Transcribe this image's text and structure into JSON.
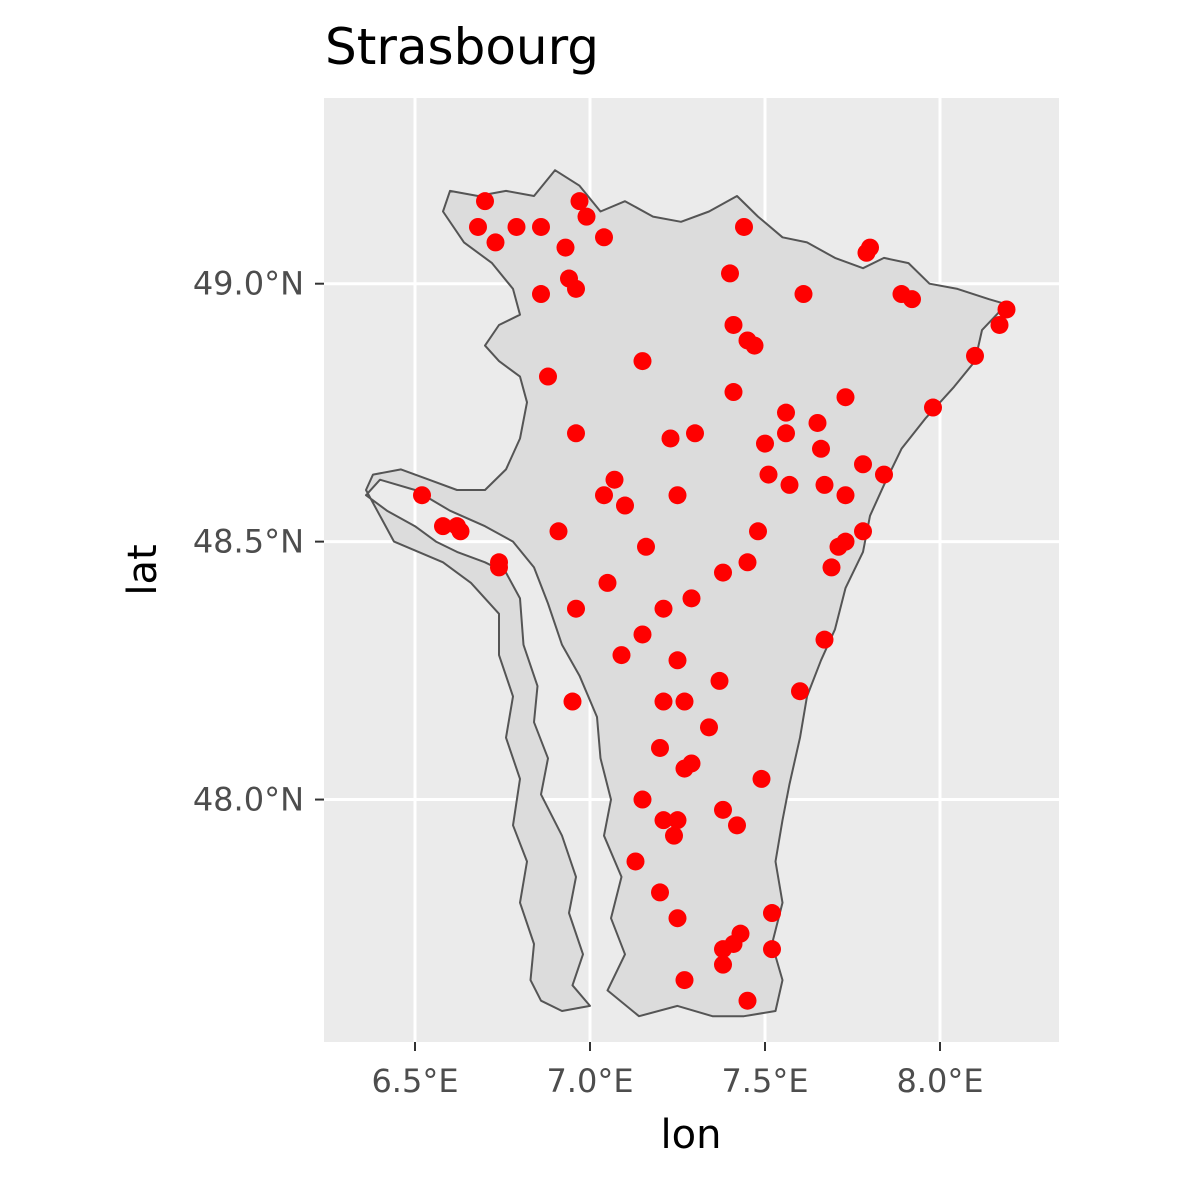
{
  "chart_data": {
    "type": "scatter",
    "title": "Strasbourg",
    "xlabel": "lon",
    "ylabel": "lat",
    "xlim": [
      6.24,
      8.34
    ],
    "ylim": [
      47.53,
      49.36
    ],
    "x_ticks": [
      {
        "value": 6.5,
        "label": "6.5°E"
      },
      {
        "value": 7.0,
        "label": "7.0°E"
      },
      {
        "value": 7.5,
        "label": "7.5°E"
      },
      {
        "value": 8.0,
        "label": "8.0°E"
      }
    ],
    "y_ticks": [
      {
        "value": 48.0,
        "label": "48.0°N"
      },
      {
        "value": 48.5,
        "label": "48.5°N"
      },
      {
        "value": 49.0,
        "label": "49.0°N"
      }
    ],
    "grid": true,
    "region_fill": "#dcdcdc",
    "region_stroke": "#555555",
    "point_color": "#ff0000",
    "panel_background": "#ebebeb",
    "region_outline": [
      [
        6.68,
        49.17
      ],
      [
        6.76,
        49.18
      ],
      [
        6.84,
        49.17
      ],
      [
        6.9,
        49.22
      ],
      [
        6.97,
        49.19
      ],
      [
        7.03,
        49.14
      ],
      [
        7.1,
        49.16
      ],
      [
        7.18,
        49.13
      ],
      [
        7.26,
        49.12
      ],
      [
        7.34,
        49.14
      ],
      [
        7.42,
        49.17
      ],
      [
        7.48,
        49.13
      ],
      [
        7.55,
        49.09
      ],
      [
        7.62,
        49.08
      ],
      [
        7.7,
        49.05
      ],
      [
        7.78,
        49.03
      ],
      [
        7.84,
        49.05
      ],
      [
        7.91,
        49.04
      ],
      [
        7.97,
        49.0
      ],
      [
        8.05,
        48.99
      ],
      [
        8.14,
        48.97
      ],
      [
        8.19,
        48.96
      ],
      [
        8.12,
        48.91
      ],
      [
        8.1,
        48.85
      ],
      [
        8.04,
        48.8
      ],
      [
        7.96,
        48.74
      ],
      [
        7.89,
        48.68
      ],
      [
        7.84,
        48.61
      ],
      [
        7.8,
        48.55
      ],
      [
        7.78,
        48.48
      ],
      [
        7.73,
        48.41
      ],
      [
        7.7,
        48.33
      ],
      [
        7.66,
        48.27
      ],
      [
        7.62,
        48.2
      ],
      [
        7.6,
        48.12
      ],
      [
        7.57,
        48.03
      ],
      [
        7.55,
        47.96
      ],
      [
        7.53,
        47.88
      ],
      [
        7.55,
        47.8
      ],
      [
        7.52,
        47.72
      ],
      [
        7.55,
        47.65
      ],
      [
        7.53,
        47.59
      ],
      [
        7.44,
        47.58
      ],
      [
        7.35,
        47.58
      ],
      [
        7.25,
        47.6
      ],
      [
        7.14,
        47.58
      ],
      [
        7.05,
        47.63
      ],
      [
        7.1,
        47.7
      ],
      [
        7.06,
        47.77
      ],
      [
        7.09,
        47.85
      ],
      [
        7.04,
        47.93
      ],
      [
        7.06,
        48.0
      ],
      [
        7.03,
        48.08
      ],
      [
        7.02,
        48.16
      ],
      [
        6.97,
        48.24
      ],
      [
        6.92,
        48.3
      ],
      [
        6.88,
        48.38
      ],
      [
        6.84,
        48.45
      ],
      [
        6.78,
        48.5
      ],
      [
        6.7,
        48.53
      ],
      [
        6.6,
        48.56
      ],
      [
        6.5,
        48.6
      ],
      [
        6.4,
        48.62
      ],
      [
        6.36,
        48.59
      ],
      [
        6.42,
        48.56
      ],
      [
        6.5,
        48.53
      ],
      [
        6.56,
        48.5
      ],
      [
        6.62,
        48.48
      ],
      [
        6.7,
        48.46
      ],
      [
        6.76,
        48.44
      ],
      [
        6.8,
        48.39
      ],
      [
        6.81,
        48.3
      ],
      [
        6.85,
        48.22
      ],
      [
        6.84,
        48.15
      ],
      [
        6.88,
        48.08
      ],
      [
        6.86,
        48.01
      ],
      [
        6.92,
        47.93
      ],
      [
        6.96,
        47.85
      ],
      [
        6.94,
        47.78
      ],
      [
        6.98,
        47.7
      ],
      [
        6.95,
        47.64
      ],
      [
        7.0,
        47.6
      ],
      [
        6.92,
        47.59
      ],
      [
        6.86,
        47.61
      ],
      [
        6.83,
        47.65
      ],
      [
        6.84,
        47.72
      ],
      [
        6.8,
        47.8
      ],
      [
        6.82,
        47.88
      ],
      [
        6.78,
        47.95
      ],
      [
        6.8,
        48.04
      ],
      [
        6.76,
        48.12
      ],
      [
        6.78,
        48.2
      ],
      [
        6.74,
        48.28
      ],
      [
        6.74,
        48.36
      ],
      [
        6.66,
        48.42
      ],
      [
        6.58,
        48.46
      ],
      [
        6.51,
        48.48
      ],
      [
        6.44,
        48.5
      ],
      [
        6.4,
        48.55
      ],
      [
        6.36,
        48.6
      ],
      [
        6.38,
        48.63
      ],
      [
        6.46,
        48.64
      ],
      [
        6.54,
        48.62
      ],
      [
        6.62,
        48.6
      ],
      [
        6.7,
        48.6
      ],
      [
        6.76,
        48.64
      ],
      [
        6.8,
        48.7
      ],
      [
        6.82,
        48.77
      ],
      [
        6.8,
        48.82
      ],
      [
        6.74,
        48.85
      ],
      [
        6.7,
        48.88
      ],
      [
        6.74,
        48.92
      ],
      [
        6.8,
        48.94
      ],
      [
        6.78,
        48.99
      ],
      [
        6.72,
        49.04
      ],
      [
        6.64,
        49.08
      ],
      [
        6.58,
        49.14
      ],
      [
        6.6,
        49.18
      ],
      [
        6.68,
        49.17
      ]
    ],
    "points": [
      {
        "x": 6.7,
        "y": 49.16
      },
      {
        "x": 6.97,
        "y": 49.16
      },
      {
        "x": 6.99,
        "y": 49.13
      },
      {
        "x": 6.68,
        "y": 49.11
      },
      {
        "x": 6.79,
        "y": 49.11
      },
      {
        "x": 6.86,
        "y": 49.11
      },
      {
        "x": 7.44,
        "y": 49.11
      },
      {
        "x": 7.04,
        "y": 49.09
      },
      {
        "x": 6.73,
        "y": 49.08
      },
      {
        "x": 6.93,
        "y": 49.07
      },
      {
        "x": 7.8,
        "y": 49.07
      },
      {
        "x": 7.79,
        "y": 49.06
      },
      {
        "x": 7.4,
        "y": 49.02
      },
      {
        "x": 6.94,
        "y": 49.01
      },
      {
        "x": 6.96,
        "y": 48.99
      },
      {
        "x": 6.86,
        "y": 48.98
      },
      {
        "x": 7.61,
        "y": 48.98
      },
      {
        "x": 7.89,
        "y": 48.98
      },
      {
        "x": 7.92,
        "y": 48.97
      },
      {
        "x": 8.19,
        "y": 48.95
      },
      {
        "x": 8.17,
        "y": 48.92
      },
      {
        "x": 7.41,
        "y": 48.92
      },
      {
        "x": 7.45,
        "y": 48.89
      },
      {
        "x": 7.47,
        "y": 48.88
      },
      {
        "x": 8.1,
        "y": 48.86
      },
      {
        "x": 7.15,
        "y": 48.85
      },
      {
        "x": 6.88,
        "y": 48.82
      },
      {
        "x": 7.41,
        "y": 48.79
      },
      {
        "x": 7.73,
        "y": 48.78
      },
      {
        "x": 7.98,
        "y": 48.76
      },
      {
        "x": 7.56,
        "y": 48.75
      },
      {
        "x": 7.65,
        "y": 48.73
      },
      {
        "x": 6.96,
        "y": 48.71
      },
      {
        "x": 7.56,
        "y": 48.71
      },
      {
        "x": 7.3,
        "y": 48.71
      },
      {
        "x": 7.23,
        "y": 48.7
      },
      {
        "x": 7.5,
        "y": 48.69
      },
      {
        "x": 7.66,
        "y": 48.68
      },
      {
        "x": 7.78,
        "y": 48.65
      },
      {
        "x": 7.84,
        "y": 48.63
      },
      {
        "x": 7.51,
        "y": 48.63
      },
      {
        "x": 7.07,
        "y": 48.62
      },
      {
        "x": 7.67,
        "y": 48.61
      },
      {
        "x": 7.57,
        "y": 48.61
      },
      {
        "x": 6.52,
        "y": 48.59
      },
      {
        "x": 7.04,
        "y": 48.59
      },
      {
        "x": 7.25,
        "y": 48.59
      },
      {
        "x": 7.73,
        "y": 48.59
      },
      {
        "x": 7.1,
        "y": 48.57
      },
      {
        "x": 6.58,
        "y": 48.53
      },
      {
        "x": 6.62,
        "y": 48.53
      },
      {
        "x": 6.63,
        "y": 48.52
      },
      {
        "x": 6.91,
        "y": 48.52
      },
      {
        "x": 7.48,
        "y": 48.52
      },
      {
        "x": 7.78,
        "y": 48.52
      },
      {
        "x": 7.73,
        "y": 48.5
      },
      {
        "x": 7.71,
        "y": 48.49
      },
      {
        "x": 7.16,
        "y": 48.49
      },
      {
        "x": 6.74,
        "y": 48.46
      },
      {
        "x": 6.74,
        "y": 48.45
      },
      {
        "x": 7.45,
        "y": 48.46
      },
      {
        "x": 7.69,
        "y": 48.45
      },
      {
        "x": 7.38,
        "y": 48.44
      },
      {
        "x": 7.05,
        "y": 48.42
      },
      {
        "x": 7.29,
        "y": 48.39
      },
      {
        "x": 6.96,
        "y": 48.37
      },
      {
        "x": 7.21,
        "y": 48.37
      },
      {
        "x": 7.15,
        "y": 48.32
      },
      {
        "x": 7.67,
        "y": 48.31
      },
      {
        "x": 7.09,
        "y": 48.28
      },
      {
        "x": 7.25,
        "y": 48.27
      },
      {
        "x": 7.37,
        "y": 48.23
      },
      {
        "x": 7.6,
        "y": 48.21
      },
      {
        "x": 6.95,
        "y": 48.19
      },
      {
        "x": 7.27,
        "y": 48.19
      },
      {
        "x": 7.21,
        "y": 48.19
      },
      {
        "x": 7.34,
        "y": 48.14
      },
      {
        "x": 7.2,
        "y": 48.1
      },
      {
        "x": 7.29,
        "y": 48.07
      },
      {
        "x": 7.27,
        "y": 48.06
      },
      {
        "x": 7.49,
        "y": 48.04
      },
      {
        "x": 7.15,
        "y": 48.0
      },
      {
        "x": 7.38,
        "y": 47.98
      },
      {
        "x": 7.21,
        "y": 47.96
      },
      {
        "x": 7.25,
        "y": 47.96
      },
      {
        "x": 7.42,
        "y": 47.95
      },
      {
        "x": 7.24,
        "y": 47.93
      },
      {
        "x": 7.13,
        "y": 47.88
      },
      {
        "x": 7.2,
        "y": 47.82
      },
      {
        "x": 7.52,
        "y": 47.78
      },
      {
        "x": 7.25,
        "y": 47.77
      },
      {
        "x": 7.43,
        "y": 47.74
      },
      {
        "x": 7.41,
        "y": 47.72
      },
      {
        "x": 7.38,
        "y": 47.71
      },
      {
        "x": 7.52,
        "y": 47.71
      },
      {
        "x": 7.38,
        "y": 47.68
      },
      {
        "x": 7.27,
        "y": 47.65
      },
      {
        "x": 7.45,
        "y": 47.61
      }
    ]
  }
}
